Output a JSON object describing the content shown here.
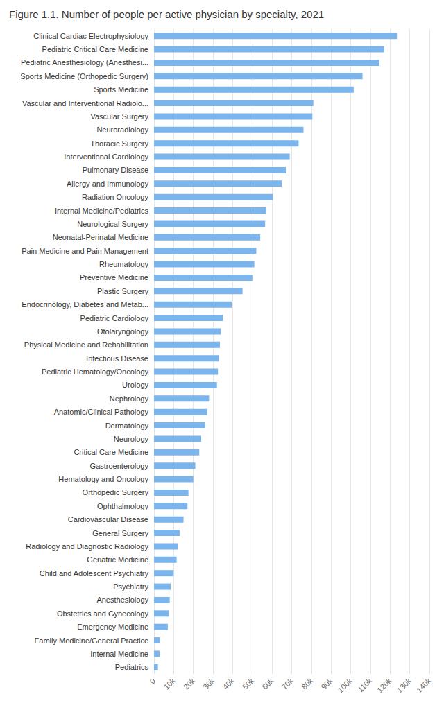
{
  "chart_data": {
    "type": "bar",
    "title": "Figure 1.1. Number of people per active physician by specialty, 2021",
    "orientation": "horizontal",
    "categories": [
      "Clinical Cardiac Electrophysiology",
      "Pediatric Critical Care Medicine",
      "Pediatric Anesthesiology (Anesthesi...",
      "Sports Medicine (Orthopedic Surgery)",
      "Sports Medicine",
      "Vascular and Interventional Radiolo...",
      "Vascular Surgery",
      "Neuroradiology",
      "Thoracic Surgery",
      "Interventional Cardiology",
      "Pulmonary Disease",
      "Allergy and Immunology",
      "Radiation Oncology",
      "Internal Medicine/Pediatrics",
      "Neurological Surgery",
      "Neonatal-Perinatal Medicine",
      "Pain Medicine and Pain Management",
      "Rheumatology",
      "Preventive Medicine",
      "Plastic Surgery",
      "Endocrinology, Diabetes and Metab...",
      "Pediatric Cardiology",
      "Otolaryngology",
      "Physical Medicine and Rehabilitation",
      "Infectious Disease",
      "Pediatric Hematology/Oncology",
      "Urology",
      "Nephrology",
      "Anatomic/Clinical Pathology",
      "Dermatology",
      "Neurology",
      "Critical Care Medicine",
      "Gastroenterology",
      "Hematology and Oncology",
      "Orthopedic Surgery",
      "Ophthalmology",
      "Cardiovascular Disease",
      "General Surgery",
      "Radiology and Diagnostic Radiology",
      "Geriatric Medicine",
      "Child and Adolescent Psychiatry",
      "Psychiatry",
      "Anesthesiology",
      "Obstetrics and Gynecology",
      "Emergency Medicine",
      "Family Medicine/General Practice",
      "Internal Medicine",
      "Pediatrics"
    ],
    "values": [
      123500,
      117000,
      114500,
      106000,
      101500,
      81000,
      80500,
      76000,
      73500,
      69000,
      67000,
      65000,
      60500,
      57000,
      56500,
      54000,
      52000,
      51000,
      50000,
      45000,
      39500,
      35000,
      34000,
      33500,
      33000,
      32500,
      32000,
      28000,
      27000,
      26000,
      24000,
      23000,
      21000,
      20000,
      17500,
      17000,
      15000,
      13000,
      12000,
      11500,
      10000,
      8500,
      8000,
      7500,
      7000,
      3000,
      2800,
      2000
    ],
    "color": "#7cb5ec",
    "xlim": [
      0,
      140000
    ],
    "xticks": [
      0,
      {
        "value": 10000,
        "label": "10k"
      },
      {
        "value": 20000,
        "label": "20k"
      },
      {
        "value": 30000,
        "label": "30k"
      },
      {
        "value": 40000,
        "label": "40k"
      },
      {
        "value": 50000,
        "label": "50k"
      },
      {
        "value": 60000,
        "label": "60k"
      },
      {
        "value": 70000,
        "label": "70k"
      },
      {
        "value": 80000,
        "label": "80k"
      },
      {
        "value": 90000,
        "label": "90k"
      },
      {
        "value": 100000,
        "label": "100k"
      },
      {
        "value": 110000,
        "label": "110k"
      },
      {
        "value": 120000,
        "label": "120k"
      },
      {
        "value": 130000,
        "label": "130k"
      },
      {
        "value": 140000,
        "label": "140k"
      }
    ],
    "grid": true
  }
}
